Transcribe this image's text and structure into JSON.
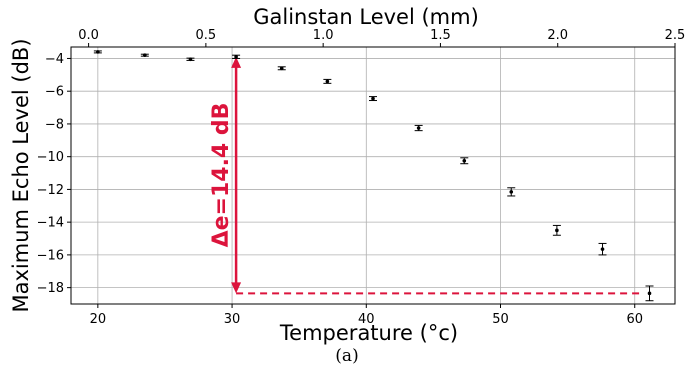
{
  "chart_data": {
    "type": "scatter",
    "xlabel": "Temperature (°c)",
    "ylabel": "Maximum Echo Level (dB)",
    "x2label": "Galinstan Level (mm)",
    "xlim": [
      18,
      63
    ],
    "ylim": [
      -19,
      -3.3
    ],
    "x2lim": [
      -0.075,
      2.5
    ],
    "xticks": [
      20,
      30,
      40,
      50,
      60
    ],
    "yticks": [
      -4,
      -6,
      -8,
      -10,
      -12,
      -14,
      -16,
      -18
    ],
    "x2ticks": [
      "0.0",
      "0.5",
      "1.0",
      "1.5",
      "2.0",
      "2.5"
    ],
    "grid": true,
    "points": [
      {
        "x": 20.0,
        "y": -3.6,
        "err": 0.06
      },
      {
        "x": 23.5,
        "y": -3.8,
        "err": 0.06
      },
      {
        "x": 26.9,
        "y": -4.05,
        "err": 0.07
      },
      {
        "x": 30.3,
        "y": -3.9,
        "err": 0.1
      },
      {
        "x": 33.7,
        "y": -4.6,
        "err": 0.09
      },
      {
        "x": 37.1,
        "y": -5.4,
        "err": 0.12
      },
      {
        "x": 40.5,
        "y": -6.45,
        "err": 0.12
      },
      {
        "x": 43.9,
        "y": -8.25,
        "err": 0.16
      },
      {
        "x": 47.3,
        "y": -10.25,
        "err": 0.18
      },
      {
        "x": 50.8,
        "y": -12.15,
        "err": 0.25
      },
      {
        "x": 54.2,
        "y": -14.5,
        "err": 0.3
      },
      {
        "x": 57.6,
        "y": -15.65,
        "err": 0.35
      },
      {
        "x": 61.1,
        "y": -18.35,
        "err": 0.45
      }
    ],
    "annotation": {
      "text": "Δe=14.4 dB",
      "color": "#dc143c",
      "arrow_x": 30.3,
      "arrow_from": -3.9,
      "arrow_to": -18.35
    }
  },
  "caption": "(a)"
}
